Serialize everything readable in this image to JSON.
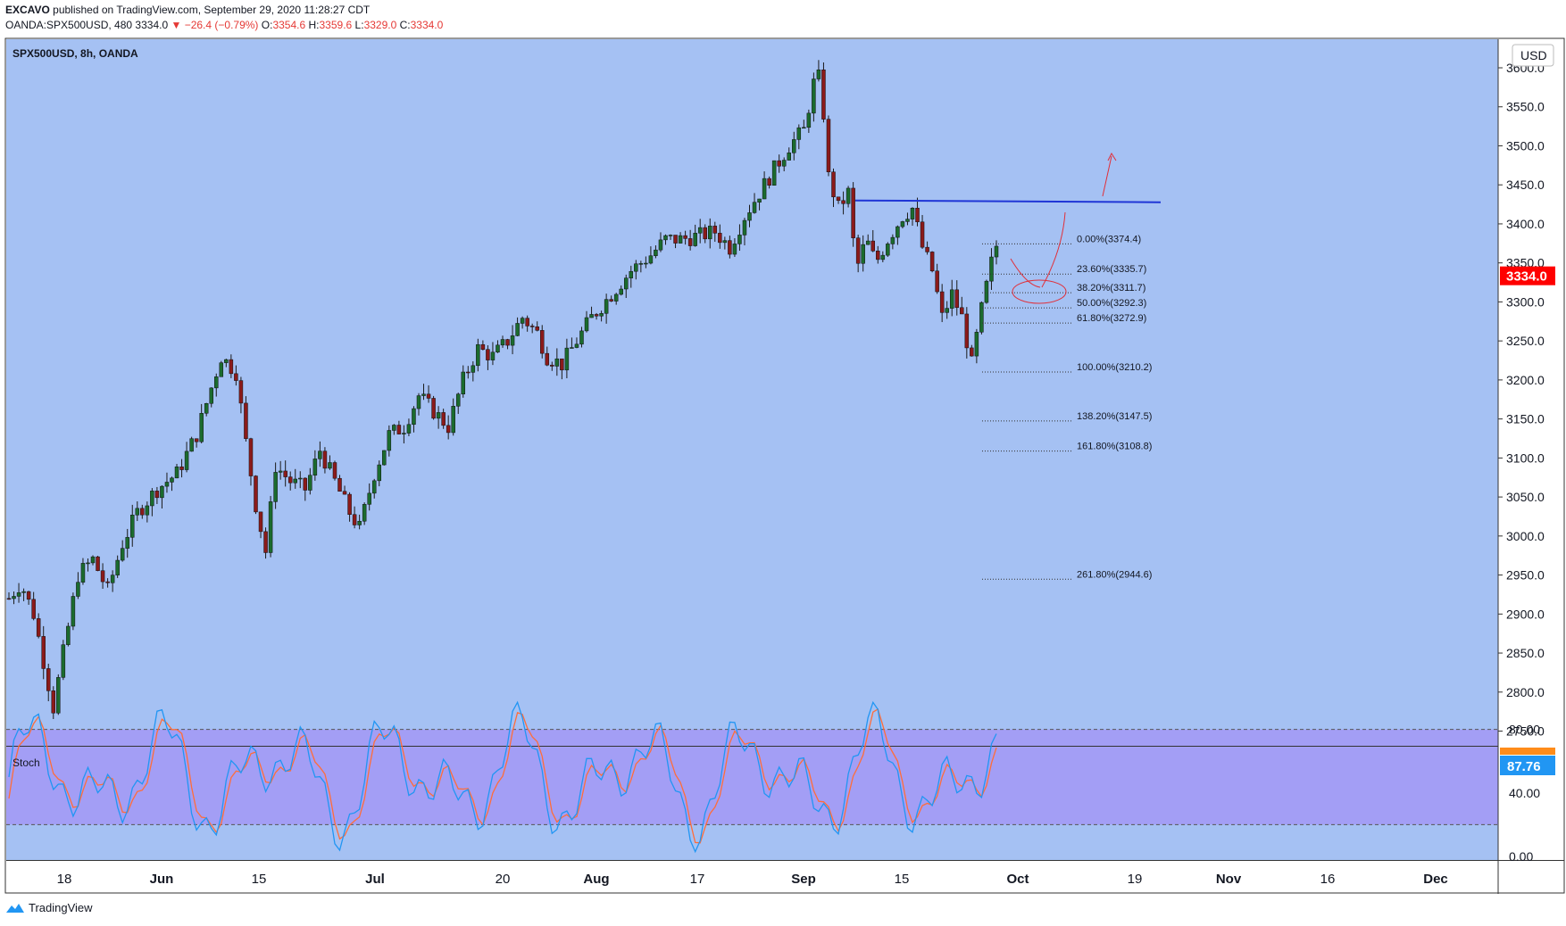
{
  "header": {
    "user": "EXCAVO",
    "published": "published on TradingView.com, September 29, 2020 11:28:27 CDT",
    "symbol": "OANDA:SPX500USD, 480",
    "last": "3334.0",
    "change": "−26.4 (−0.79%)",
    "o_label": "O:",
    "o_val": "3354.6",
    "h_label": "H:",
    "h_val": "3359.6",
    "l_label": "L:",
    "l_val": "3329.0",
    "c_label": "C:",
    "c_val": "3334.0"
  },
  "chart_data": {
    "type": "candlestick",
    "title": "SPX500USD, 8h, OANDA",
    "currency": "USD",
    "y_ticks": [
      2750,
      2800,
      2850,
      2900,
      2950,
      3000,
      3050,
      3100,
      3150,
      3200,
      3250,
      3300,
      3350,
      3400,
      3450,
      3500,
      3550,
      3600
    ],
    "y_tick_labels": [
      "2750.0",
      "2800.0",
      "2850.0",
      "2900.0",
      "2950.0",
      "3000.0",
      "3050.0",
      "3100.0",
      "3150.0",
      "3200.0",
      "3250.0",
      "3300.0",
      "3350.0",
      "3400.0",
      "3450.0",
      "3500.0",
      "3550.0",
      "3600.0"
    ],
    "ylim": [
      2705,
      3615
    ],
    "last_price": "3334.0",
    "x_ticks": [
      "18",
      "Jun",
      "15",
      "Jul",
      "20",
      "Aug",
      "17",
      "Sep",
      "15",
      "Oct",
      "19",
      "Nov",
      "16",
      "Dec"
    ],
    "price_path": [
      [
        0,
        2920
      ],
      [
        12,
        2940
      ],
      [
        25,
        2900
      ],
      [
        35,
        2840
      ],
      [
        45,
        2780
      ],
      [
        55,
        2850
      ],
      [
        70,
        2950
      ],
      [
        85,
        2970
      ],
      [
        100,
        2930
      ],
      [
        115,
        2990
      ],
      [
        130,
        3030
      ],
      [
        150,
        3060
      ],
      [
        170,
        3080
      ],
      [
        190,
        3130
      ],
      [
        205,
        3190
      ],
      [
        215,
        3230
      ],
      [
        230,
        3210
      ],
      [
        240,
        3120
      ],
      [
        250,
        3040
      ],
      [
        260,
        2980
      ],
      [
        270,
        3090
      ],
      [
        285,
        3070
      ],
      [
        300,
        3060
      ],
      [
        315,
        3110
      ],
      [
        330,
        3070
      ],
      [
        345,
        3030
      ],
      [
        355,
        3010
      ],
      [
        370,
        3080
      ],
      [
        385,
        3130
      ],
      [
        400,
        3140
      ],
      [
        415,
        3180
      ],
      [
        430,
        3160
      ],
      [
        445,
        3140
      ],
      [
        460,
        3200
      ],
      [
        475,
        3240
      ],
      [
        490,
        3230
      ],
      [
        505,
        3250
      ],
      [
        520,
        3280
      ],
      [
        535,
        3260
      ],
      [
        545,
        3230
      ],
      [
        560,
        3220
      ],
      [
        575,
        3250
      ],
      [
        590,
        3280
      ],
      [
        610,
        3310
      ],
      [
        630,
        3340
      ],
      [
        650,
        3360
      ],
      [
        665,
        3380
      ],
      [
        680,
        3380
      ],
      [
        700,
        3385
      ],
      [
        715,
        3390
      ],
      [
        730,
        3370
      ],
      [
        745,
        3410
      ],
      [
        760,
        3440
      ],
      [
        775,
        3470
      ],
      [
        790,
        3500
      ],
      [
        805,
        3520
      ],
      [
        815,
        3580
      ],
      [
        822,
        3590
      ],
      [
        830,
        3460
      ],
      [
        840,
        3420
      ],
      [
        850,
        3440
      ],
      [
        858,
        3340
      ],
      [
        868,
        3380
      ],
      [
        878,
        3350
      ],
      [
        890,
        3380
      ],
      [
        905,
        3410
      ],
      [
        915,
        3420
      ],
      [
        925,
        3370
      ],
      [
        935,
        3340
      ],
      [
        945,
        3280
      ],
      [
        955,
        3310
      ],
      [
        965,
        3280
      ],
      [
        975,
        3220
      ],
      [
        985,
        3290
      ],
      [
        995,
        3350
      ],
      [
        1000,
        3372
      ],
      [
        1005,
        3334
      ]
    ],
    "resistance_level": 3430,
    "fibonacci": [
      {
        "label": "0.00%(3374.4)",
        "value": 3374.4
      },
      {
        "label": "23.60%(3335.7)",
        "value": 3335.7
      },
      {
        "label": "38.20%(3311.7)",
        "value": 3311.7
      },
      {
        "label": "50.00%(3292.3)",
        "value": 3292.3
      },
      {
        "label": "61.80%(3272.9)",
        "value": 3272.9
      },
      {
        "label": "100.00%(3210.2)",
        "value": 3210.2
      },
      {
        "label": "138.20%(3147.5)",
        "value": 3147.5
      },
      {
        "label": "161.80%(3108.8)",
        "value": 3108.8
      },
      {
        "label": "261.80%(2944.6)",
        "value": 2944.6
      }
    ],
    "indicator": {
      "name": "Stoch",
      "value": "87.76",
      "y_ticks": [
        0,
        40,
        80
      ],
      "y_tick_labels": [
        "0.00",
        "40.00",
        "80.00"
      ],
      "band": [
        20,
        80
      ]
    }
  },
  "colors": {
    "background": "#a5c1f3",
    "stoch_band": "#a39ef5",
    "up": "#1b6b2e",
    "down": "#8b1a1a",
    "resistance": "#1f35d6",
    "drawing": "#e0303a",
    "price_label": "#ff0000",
    "stoch_k": "#2196f3",
    "stoch_d": "#ff6d3a"
  },
  "footer": {
    "brand": "TradingView"
  }
}
